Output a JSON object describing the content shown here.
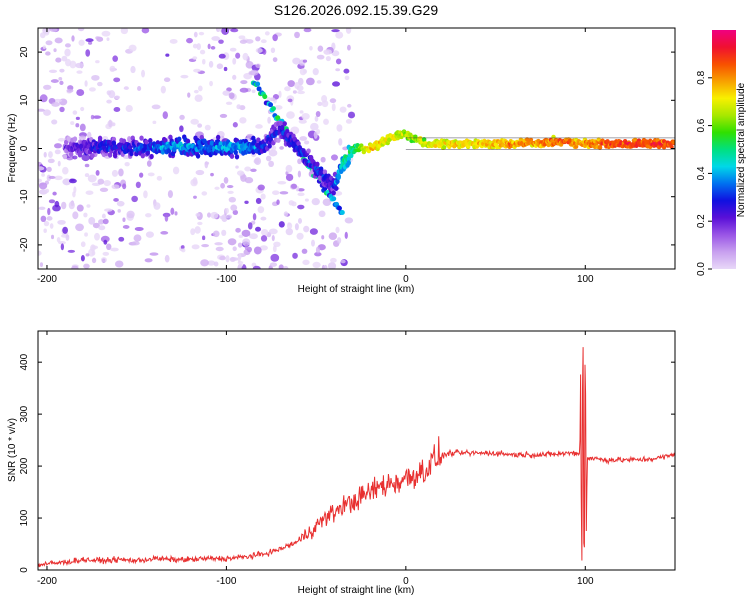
{
  "title": "S126.2026.092.15.39.G29",
  "chart_data": [
    {
      "type": "heatmap",
      "title": "S126.2026.092.15.39.G29",
      "xlabel": "Height of straight line (km)",
      "ylabel": "Frequency (Hz)",
      "xlim": [
        -205,
        150
      ],
      "ylim": [
        -25,
        25
      ],
      "xticks": [
        -200,
        -100,
        0,
        100
      ],
      "yticks": [
        -20,
        -10,
        0,
        10,
        20
      ],
      "colorbar": {
        "label": "Normalized spectral amplitude",
        "range": [
          0,
          1
        ],
        "ticks": [
          0.0,
          0.2,
          0.4,
          0.6,
          0.8
        ],
        "colors": [
          "#e8d8f8",
          "#c8a0ef",
          "#9a55e6",
          "#5a10d8",
          "#1010e0",
          "#0070f0",
          "#00d8e8",
          "#00e080",
          "#30e000",
          "#a8e800",
          "#f8f000",
          "#f8a000",
          "#f85000",
          "#f01030",
          "#f00080"
        ]
      },
      "ridge": {
        "x": [
          -190,
          -170,
          -150,
          -130,
          -110,
          -90,
          -80,
          -70,
          -60,
          -50,
          -40,
          -35,
          -30,
          -20,
          -10,
          0,
          10,
          30,
          60,
          90,
          95,
          115,
          150
        ],
        "y": [
          0,
          0.5,
          0,
          0.5,
          0,
          0.5,
          0,
          4,
          0,
          -4,
          -8,
          -3,
          0,
          0,
          2,
          3,
          1,
          1,
          1,
          1.5,
          1,
          1,
          1
        ],
        "amplitude": [
          0.2,
          0.3,
          0.3,
          0.4,
          0.4,
          0.4,
          0.3,
          0.3,
          0.3,
          0.3,
          0.3,
          0.5,
          0.5,
          0.75,
          0.75,
          0.65,
          0.7,
          0.75,
          0.8,
          0.85,
          0.8,
          0.9,
          0.9
        ]
      }
    },
    {
      "type": "line",
      "xlabel": "Height of straight line (km)",
      "ylabel": "SNR (10 * v/v)",
      "xlim": [
        -205,
        150
      ],
      "ylim": [
        0,
        460
      ],
      "xticks": [
        -200,
        -100,
        0,
        100
      ],
      "yticks": [
        0,
        100,
        200,
        300,
        400
      ],
      "color": "#e83030",
      "series": [
        {
          "name": "SNR",
          "x": [
            -205,
            -190,
            -180,
            -170,
            -160,
            -150,
            -140,
            -130,
            -120,
            -110,
            -100,
            -90,
            -80,
            -70,
            -60,
            -55,
            -50,
            -45,
            -40,
            -35,
            -30,
            -25,
            -20,
            -15,
            -10,
            -5,
            0,
            5,
            10,
            15,
            20,
            25,
            30,
            40,
            50,
            60,
            70,
            80,
            90,
            95,
            98,
            100,
            102,
            105,
            110,
            120,
            130,
            140,
            150
          ],
          "y": [
            10,
            15,
            20,
            18,
            20,
            18,
            22,
            20,
            20,
            22,
            22,
            25,
            30,
            40,
            55,
            70,
            85,
            100,
            110,
            125,
            130,
            140,
            150,
            160,
            165,
            170,
            175,
            185,
            190,
            210,
            220,
            225,
            225,
            225,
            225,
            222,
            222,
            222,
            225,
            225,
            220,
            220,
            215,
            215,
            212,
            212,
            212,
            215,
            222
          ]
        }
      ]
    }
  ]
}
